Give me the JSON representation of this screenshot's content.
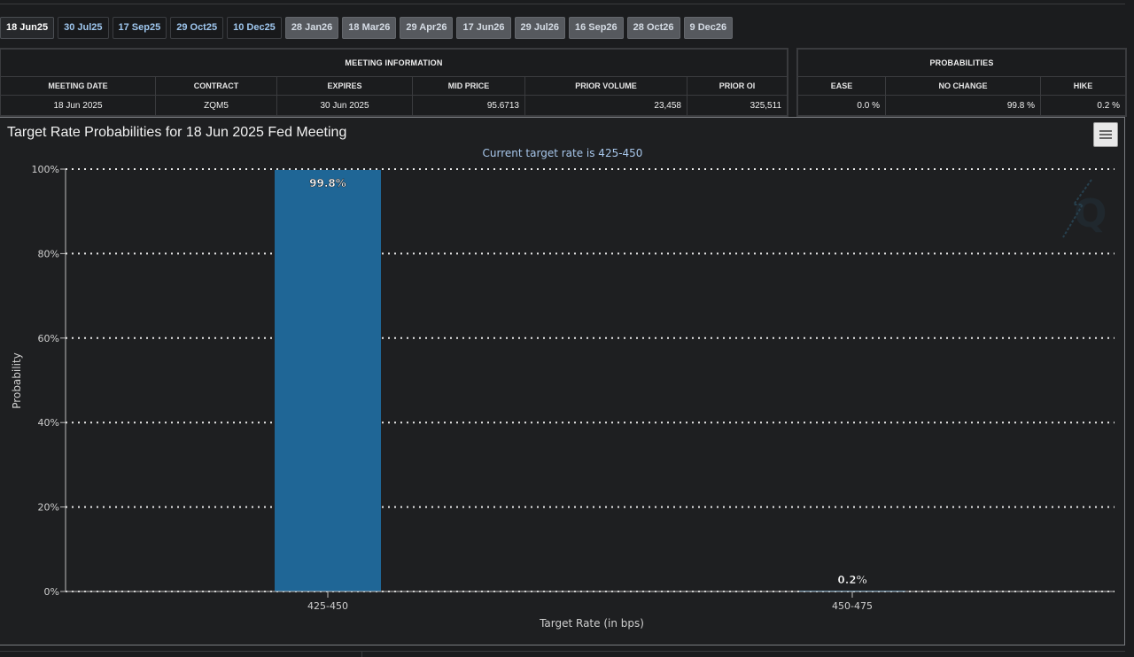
{
  "tabs": [
    {
      "label": "18 Jun25",
      "state": "selected"
    },
    {
      "label": "30 Jul25",
      "state": "normal"
    },
    {
      "label": "17 Sep25",
      "state": "normal"
    },
    {
      "label": "29 Oct25",
      "state": "normal"
    },
    {
      "label": "10 Dec25",
      "state": "normal"
    },
    {
      "label": "28 Jan26",
      "state": "future"
    },
    {
      "label": "18 Mar26",
      "state": "future"
    },
    {
      "label": "29 Apr26",
      "state": "future"
    },
    {
      "label": "17 Jun26",
      "state": "future"
    },
    {
      "label": "29 Jul26",
      "state": "future"
    },
    {
      "label": "16 Sep26",
      "state": "future"
    },
    {
      "label": "28 Oct26",
      "state": "future"
    },
    {
      "label": "9 Dec26",
      "state": "future"
    }
  ],
  "meeting_info": {
    "heading": "MEETING INFORMATION",
    "columns": [
      "MEETING DATE",
      "CONTRACT",
      "EXPIRES",
      "MID PRICE",
      "PRIOR VOLUME",
      "PRIOR OI"
    ],
    "row": [
      "18 Jun 2025",
      "ZQM5",
      "30 Jun 2025",
      "95.6713",
      "23,458",
      "325,511"
    ]
  },
  "probabilities": {
    "heading": "PROBABILITIES",
    "columns": [
      "EASE",
      "NO CHANGE",
      "HIKE"
    ],
    "row": [
      "0.0 %",
      "99.8 %",
      "0.2 %"
    ]
  },
  "chart": {
    "title": "Target Rate Probabilities for 18 Jun 2025 Fed Meeting",
    "menu_icon": "hamburger-menu-icon",
    "watermark_icon": "q-logo-icon"
  },
  "chart_data": {
    "type": "bar",
    "title": "Target Rate Probabilities for 18 Jun 2025 Fed Meeting",
    "subtitle": "Current target rate is 425-450",
    "categories": [
      "425-450",
      "450-475"
    ],
    "values": [
      99.8,
      0.2
    ],
    "data_labels": [
      "99.8%",
      "0.2%"
    ],
    "xlabel": "Target Rate (in bps)",
    "ylabel": "Probability",
    "ylim": [
      0,
      100
    ],
    "yticks": [
      "0%",
      "20%",
      "40%",
      "60%",
      "80%",
      "100%"
    ],
    "grid": true,
    "bar_color": "#1f6696",
    "subtitle_color": "#a7c6ea"
  }
}
